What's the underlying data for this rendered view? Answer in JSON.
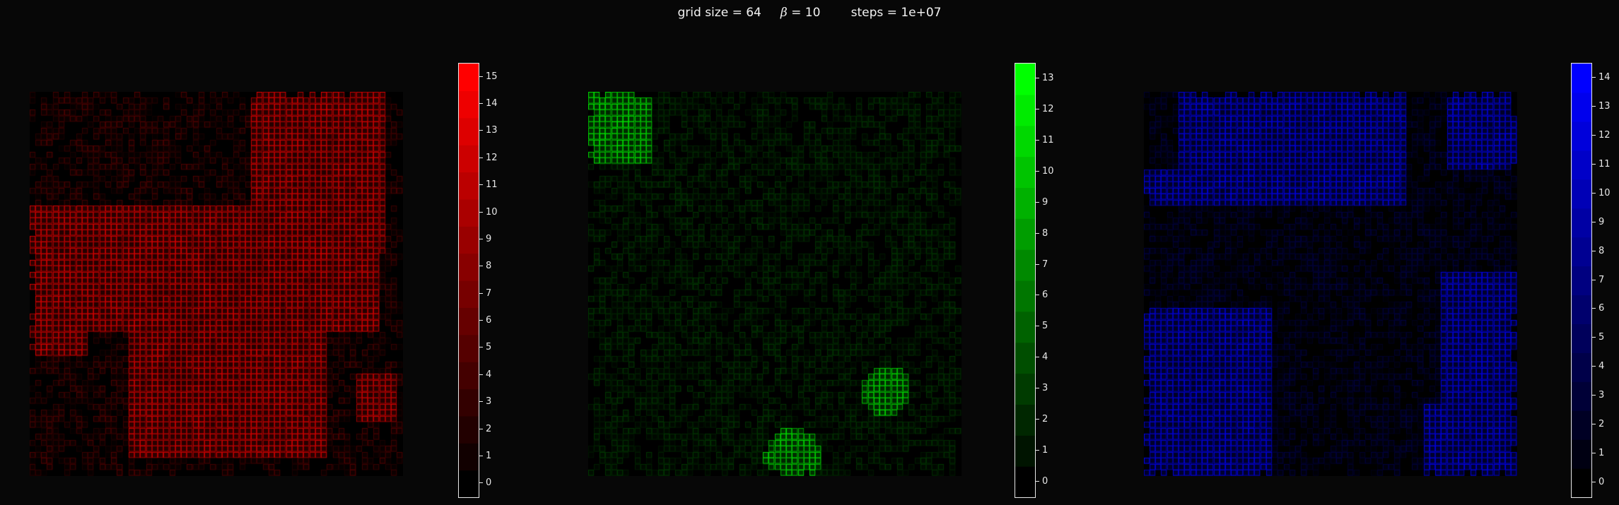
{
  "title": {
    "grid": "grid size = 64",
    "beta_symbol": "β",
    "beta_value": " = 10",
    "steps": "steps = 1e+07"
  },
  "chart_data": [
    {
      "type": "heatmap",
      "channel": "red",
      "color": "#ff0000",
      "grid_size": 64,
      "colorbar": {
        "vmin": -0.5,
        "vmax": 15.5,
        "ticks": [
          0,
          1,
          2,
          3,
          4,
          5,
          6,
          7,
          8,
          9,
          10,
          11,
          12,
          13,
          14,
          15
        ]
      },
      "levels": {
        "low": 1,
        "mid": 4,
        "high": 12
      }
    },
    {
      "type": "heatmap",
      "channel": "green",
      "color": "#00ff00",
      "grid_size": 64,
      "colorbar": {
        "vmin": -0.5,
        "vmax": 13.5,
        "ticks": [
          0,
          1,
          2,
          3,
          4,
          5,
          6,
          7,
          8,
          9,
          10,
          11,
          12,
          13
        ]
      },
      "levels": {
        "low": 1,
        "mid": 2,
        "high": 11
      }
    },
    {
      "type": "heatmap",
      "channel": "blue",
      "color": "#0000ff",
      "grid_size": 64,
      "colorbar": {
        "vmin": -0.5,
        "vmax": 14.5,
        "ticks": [
          0,
          1,
          2,
          3,
          4,
          5,
          6,
          7,
          8,
          9,
          10,
          11,
          12,
          13,
          14
        ]
      },
      "levels": {
        "low": 1,
        "mid": 3,
        "high": 12
      }
    }
  ]
}
